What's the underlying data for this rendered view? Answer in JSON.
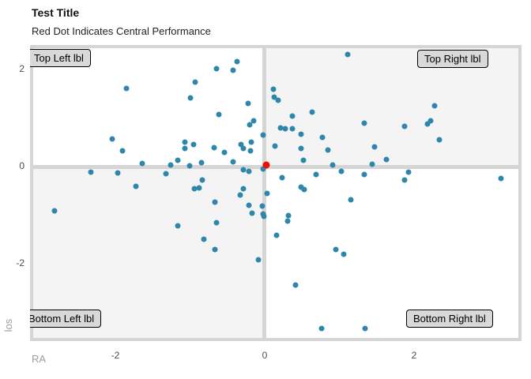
{
  "header": {
    "title": "Test Title",
    "subtitle": "Red Dot Indicates Central Performance"
  },
  "quadrant_labels": {
    "top_left": "Top Left lbl",
    "top_right": "Top Right lbl",
    "bottom_left": "Bottom Left lbl",
    "bottom_right": "Bottom Right lbl"
  },
  "axes": {
    "x_title": "RA",
    "y_title": "los",
    "x_ticks": [
      -2,
      0,
      2
    ],
    "y_ticks": [
      2,
      0,
      -2
    ]
  },
  "colors": {
    "point": "#2e87ab",
    "center_point": "#ee0f04",
    "grid": "#d5d5d5",
    "quadrant_shade": "#f4f4f4",
    "label_box_fill": "#d9d9d9",
    "axis_text": "#4d4d4d",
    "axis_title": "#9b9b9b"
  },
  "chart_data": {
    "type": "scatter",
    "title": "Test Title",
    "subtitle": "Red Dot Indicates Central Performance",
    "xlabel": "RA",
    "ylabel": "los",
    "xlim": [
      -3.14,
      3.44
    ],
    "ylim": [
      -3.61,
      2.5
    ],
    "grid": false,
    "legend": "none",
    "annotations": [
      "Top Left lbl",
      "Top Right lbl",
      "Bottom Left lbl",
      "Bottom Right lbl"
    ],
    "reference_lines": {
      "vertical_x": 0,
      "horizontal_y": 0
    },
    "series": [
      {
        "name": "points",
        "color": "#2e87ab",
        "points": [
          [
            -1.85,
            1.61
          ],
          [
            -2.04,
            0.57
          ],
          [
            -1.9,
            0.33
          ],
          [
            -1.64,
            0.07
          ],
          [
            -2.33,
            -0.11
          ],
          [
            -1.97,
            -0.13
          ],
          [
            -1.72,
            -0.41
          ],
          [
            -2.81,
            -0.91
          ],
          [
            -0.37,
            2.16
          ],
          [
            -0.65,
            2.02
          ],
          [
            -0.42,
            1.98
          ],
          [
            -0.93,
            1.74
          ],
          [
            -0.99,
            1.41
          ],
          [
            -0.22,
            1.3
          ],
          [
            0.12,
            1.59
          ],
          [
            0.13,
            1.43
          ],
          [
            0.18,
            1.37
          ],
          [
            -0.61,
            1.07
          ],
          [
            -0.2,
            0.86
          ],
          [
            -0.15,
            0.94
          ],
          [
            0.21,
            0.8
          ],
          [
            0.28,
            0.78
          ],
          [
            -0.02,
            0.65
          ],
          [
            -1.07,
            0.5
          ],
          [
            -0.95,
            0.46
          ],
          [
            -1.07,
            0.37
          ],
          [
            -0.32,
            0.46
          ],
          [
            -0.29,
            0.37
          ],
          [
            -0.18,
            0.5
          ],
          [
            -0.19,
            0.33
          ],
          [
            -0.68,
            0.39
          ],
          [
            -0.54,
            0.29
          ],
          [
            0.14,
            0.42
          ],
          [
            -0.42,
            0.1
          ],
          [
            -1.26,
            0.03
          ],
          [
            -1.16,
            0.13
          ],
          [
            -1.01,
            0.02
          ],
          [
            -0.85,
            0.08
          ],
          [
            -0.29,
            -0.07
          ],
          [
            -0.21,
            -0.1
          ],
          [
            -0.02,
            -0.05
          ],
          [
            -1.32,
            -0.15
          ],
          [
            -0.84,
            -0.28
          ],
          [
            -0.94,
            -0.46
          ],
          [
            -0.88,
            -0.44
          ],
          [
            -0.33,
            -0.59
          ],
          [
            -0.29,
            -0.46
          ],
          [
            0.03,
            -0.55
          ],
          [
            0.23,
            -0.23
          ],
          [
            1.11,
            2.31
          ],
          [
            0.63,
            1.12
          ],
          [
            0.37,
            1.04
          ],
          [
            0.37,
            0.78
          ],
          [
            0.49,
            0.67
          ],
          [
            0.77,
            0.6
          ],
          [
            1.33,
            0.89
          ],
          [
            1.87,
            0.83
          ],
          [
            1.47,
            0.41
          ],
          [
            0.49,
            0.37
          ],
          [
            0.85,
            0.34
          ],
          [
            0.52,
            0.13
          ],
          [
            0.91,
            0.03
          ],
          [
            1.44,
            0.05
          ],
          [
            1.63,
            0.15
          ],
          [
            1.03,
            -0.1
          ],
          [
            0.69,
            -0.16
          ],
          [
            1.33,
            -0.16
          ],
          [
            1.93,
            -0.11
          ],
          [
            1.87,
            -0.28
          ],
          [
            0.49,
            -0.42
          ],
          [
            0.53,
            -0.47
          ],
          [
            2.28,
            1.25
          ],
          [
            2.18,
            0.88
          ],
          [
            2.22,
            0.94
          ],
          [
            2.34,
            0.55
          ],
          [
            3.16,
            -0.24
          ],
          [
            -0.67,
            -0.73
          ],
          [
            -0.21,
            -0.8
          ],
          [
            -0.17,
            -0.96
          ],
          [
            -0.03,
            -0.81
          ],
          [
            -0.02,
            -0.98
          ],
          [
            -0.01,
            -1.02
          ],
          [
            -1.16,
            -1.22
          ],
          [
            -0.65,
            -1.15
          ],
          [
            -0.81,
            -1.5
          ],
          [
            -0.67,
            -1.71
          ],
          [
            -0.08,
            -1.92
          ],
          [
            0.16,
            -1.41
          ],
          [
            1.15,
            -0.68
          ],
          [
            0.32,
            -1.01
          ],
          [
            0.31,
            -1.12
          ],
          [
            0.95,
            -1.71
          ],
          [
            1.06,
            -1.8
          ],
          [
            0.41,
            -2.44
          ],
          [
            0.76,
            -3.33
          ],
          [
            1.34,
            -3.33
          ]
        ]
      },
      {
        "name": "central",
        "color": "#ee0f04",
        "points": [
          [
            0.02,
            0.03
          ]
        ]
      }
    ]
  }
}
